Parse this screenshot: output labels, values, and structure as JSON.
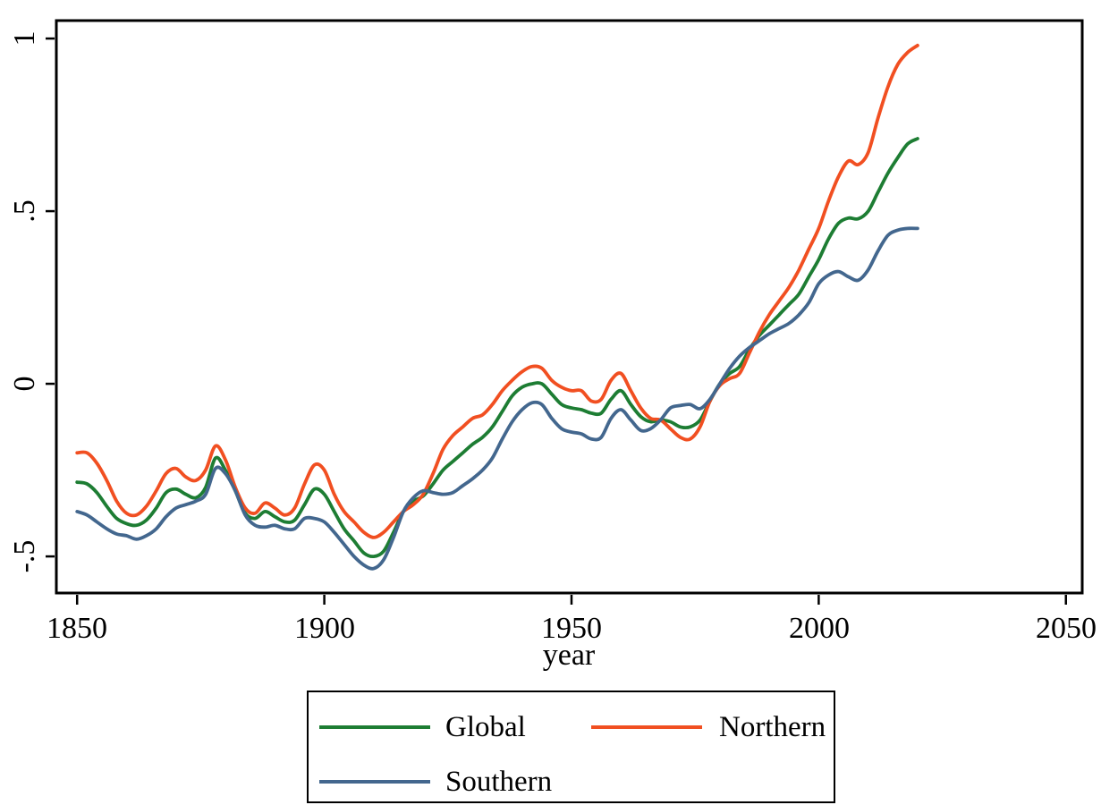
{
  "figure": {
    "background": "#ffffff",
    "frame_color": "#000000"
  },
  "chart_data": {
    "type": "line",
    "title": "",
    "xlabel": "year",
    "ylabel": "",
    "grid": false,
    "legend_position": "below-plot, boxed, 2 columns",
    "xlim": [
      1845.8,
      2053.3
    ],
    "ylim": [
      -0.606,
      1.052
    ],
    "x_ticks": [
      1850,
      1900,
      1950,
      2000,
      2050
    ],
    "y_ticks": [
      {
        "value": 1,
        "label": "1"
      },
      {
        "value": 0.5,
        "label": ".5"
      },
      {
        "value": 0,
        "label": "0"
      },
      {
        "value": -0.5,
        "label": "-.5"
      }
    ],
    "x": [
      1850,
      1852,
      1854,
      1856,
      1858,
      1860,
      1862,
      1864,
      1866,
      1868,
      1870,
      1872,
      1874,
      1876,
      1878,
      1880,
      1882,
      1884,
      1886,
      1888,
      1890,
      1892,
      1894,
      1896,
      1898,
      1900,
      1902,
      1904,
      1906,
      1908,
      1910,
      1912,
      1914,
      1916,
      1918,
      1920,
      1922,
      1924,
      1926,
      1928,
      1930,
      1932,
      1934,
      1936,
      1938,
      1940,
      1942,
      1944,
      1946,
      1948,
      1950,
      1952,
      1954,
      1956,
      1958,
      1960,
      1962,
      1964,
      1966,
      1968,
      1970,
      1972,
      1974,
      1976,
      1978,
      1980,
      1982,
      1984,
      1986,
      1988,
      1990,
      1992,
      1994,
      1996,
      1998,
      2000,
      2002,
      2004,
      2006,
      2008,
      2010,
      2012,
      2014,
      2016,
      2018,
      2020
    ],
    "series": [
      {
        "name": "Global",
        "color": "#1d7d33",
        "values": [
          -0.285,
          -0.29,
          -0.315,
          -0.355,
          -0.39,
          -0.405,
          -0.41,
          -0.395,
          -0.36,
          -0.315,
          -0.305,
          -0.32,
          -0.33,
          -0.3,
          -0.215,
          -0.25,
          -0.31,
          -0.375,
          -0.39,
          -0.37,
          -0.385,
          -0.4,
          -0.395,
          -0.35,
          -0.305,
          -0.32,
          -0.37,
          -0.42,
          -0.455,
          -0.49,
          -0.5,
          -0.485,
          -0.43,
          -0.37,
          -0.34,
          -0.325,
          -0.29,
          -0.25,
          -0.225,
          -0.2,
          -0.175,
          -0.155,
          -0.125,
          -0.08,
          -0.035,
          -0.01,
          0.0,
          0.0,
          -0.03,
          -0.06,
          -0.07,
          -0.075,
          -0.085,
          -0.085,
          -0.045,
          -0.02,
          -0.06,
          -0.095,
          -0.11,
          -0.105,
          -0.11,
          -0.125,
          -0.125,
          -0.105,
          -0.05,
          0.0,
          0.03,
          0.05,
          0.1,
          0.14,
          0.17,
          0.2,
          0.23,
          0.26,
          0.31,
          0.36,
          0.42,
          0.465,
          0.48,
          0.478,
          0.5,
          0.555,
          0.61,
          0.655,
          0.695,
          0.71
        ]
      },
      {
        "name": "Northern",
        "color": "#f14f21",
        "values": [
          -0.2,
          -0.2,
          -0.23,
          -0.28,
          -0.34,
          -0.375,
          -0.38,
          -0.355,
          -0.31,
          -0.26,
          -0.245,
          -0.27,
          -0.28,
          -0.25,
          -0.18,
          -0.22,
          -0.3,
          -0.36,
          -0.375,
          -0.345,
          -0.36,
          -0.38,
          -0.36,
          -0.29,
          -0.235,
          -0.25,
          -0.32,
          -0.37,
          -0.4,
          -0.43,
          -0.445,
          -0.43,
          -0.4,
          -0.37,
          -0.35,
          -0.32,
          -0.26,
          -0.19,
          -0.15,
          -0.125,
          -0.1,
          -0.09,
          -0.06,
          -0.02,
          0.01,
          0.035,
          0.05,
          0.045,
          0.01,
          -0.01,
          -0.02,
          -0.02,
          -0.05,
          -0.045,
          0.01,
          0.03,
          -0.02,
          -0.07,
          -0.1,
          -0.105,
          -0.13,
          -0.155,
          -0.16,
          -0.125,
          -0.05,
          -0.005,
          0.015,
          0.03,
          0.09,
          0.15,
          0.2,
          0.24,
          0.28,
          0.33,
          0.39,
          0.45,
          0.53,
          0.6,
          0.645,
          0.635,
          0.67,
          0.77,
          0.86,
          0.925,
          0.96,
          0.98
        ]
      },
      {
        "name": "Southern",
        "color": "#43678e",
        "values": [
          -0.37,
          -0.38,
          -0.4,
          -0.42,
          -0.435,
          -0.44,
          -0.45,
          -0.44,
          -0.42,
          -0.385,
          -0.36,
          -0.35,
          -0.34,
          -0.32,
          -0.245,
          -0.26,
          -0.31,
          -0.38,
          -0.41,
          -0.415,
          -0.41,
          -0.42,
          -0.42,
          -0.39,
          -0.39,
          -0.4,
          -0.43,
          -0.465,
          -0.5,
          -0.525,
          -0.535,
          -0.51,
          -0.445,
          -0.37,
          -0.33,
          -0.31,
          -0.315,
          -0.32,
          -0.315,
          -0.295,
          -0.275,
          -0.25,
          -0.215,
          -0.16,
          -0.11,
          -0.075,
          -0.055,
          -0.06,
          -0.1,
          -0.13,
          -0.14,
          -0.145,
          -0.16,
          -0.155,
          -0.1,
          -0.075,
          -0.105,
          -0.135,
          -0.13,
          -0.105,
          -0.07,
          -0.063,
          -0.06,
          -0.072,
          -0.045,
          0.0,
          0.045,
          0.08,
          0.105,
          0.125,
          0.145,
          0.16,
          0.175,
          0.2,
          0.235,
          0.29,
          0.315,
          0.325,
          0.31,
          0.3,
          0.33,
          0.385,
          0.43,
          0.445,
          0.45,
          0.45
        ]
      }
    ]
  }
}
